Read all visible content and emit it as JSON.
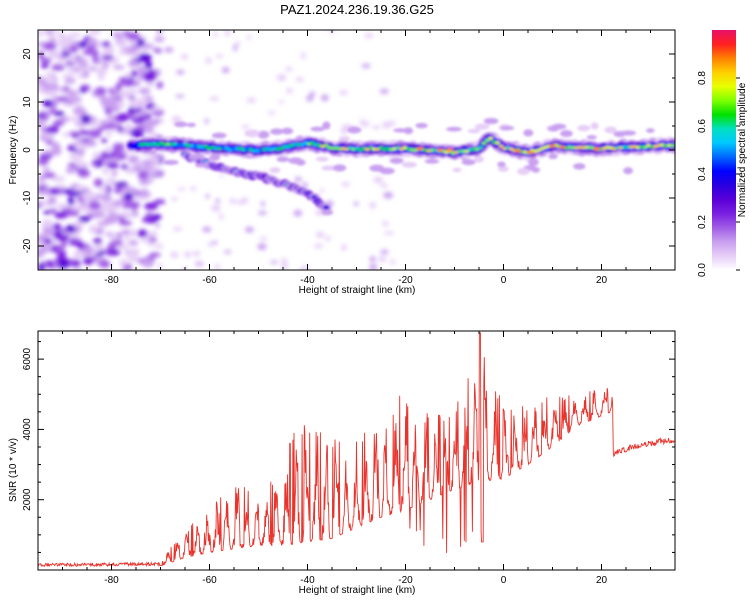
{
  "figure_title": "PAZ1.2024.236.19.36.G25",
  "chart_data": [
    {
      "type": "heatmap",
      "title": "",
      "xlabel": "Height of straight line (km)",
      "ylabel": "Frequency (Hz)",
      "xlim": [
        -95,
        35
      ],
      "ylim": [
        -25,
        25
      ],
      "xticks": [
        -80,
        -60,
        -40,
        -20,
        0,
        20
      ],
      "yticks": [
        -20,
        -10,
        0,
        10,
        20
      ],
      "colorbar": {
        "label": "Normalized spectral amplitude",
        "range": [
          0,
          1
        ],
        "ticks": [
          "0.0",
          "0.2",
          "0.4",
          "0.6",
          "0.8"
        ],
        "tick_values": [
          0,
          0.2,
          0.4,
          0.6,
          0.8
        ],
        "colors": [
          "#ffffff",
          "#e6cef7",
          "#c9a0f0",
          "#a05ce6",
          "#7a1fe0",
          "#5a00d8",
          "#2a00e0",
          "#0000ff",
          "#0066ff",
          "#00c8ff",
          "#00e0c0",
          "#00e000",
          "#7fff00",
          "#e8ff00",
          "#ffd000",
          "#ff8000",
          "#ff2020",
          "#e8106a"
        ]
      },
      "features": {
        "main_ridge": [
          [
            -75,
            1.0
          ],
          [
            -70,
            1.2
          ],
          [
            -65,
            1.0
          ],
          [
            -60,
            0.5
          ],
          [
            -55,
            0.2
          ],
          [
            -50,
            0.0
          ],
          [
            -45,
            0.5
          ],
          [
            -40,
            1.5
          ],
          [
            -35,
            0.5
          ],
          [
            -30,
            0.2
          ],
          [
            -25,
            0.3
          ],
          [
            -20,
            0.3
          ],
          [
            -15,
            0.0
          ],
          [
            -10,
            -0.5
          ],
          [
            -5,
            0.2
          ],
          [
            -3,
            2.5
          ],
          [
            0,
            0.5
          ],
          [
            5,
            -0.5
          ],
          [
            10,
            0.8
          ],
          [
            15,
            0.5
          ],
          [
            20,
            0.3
          ],
          [
            25,
            0.6
          ],
          [
            30,
            0.8
          ],
          [
            35,
            1.0
          ]
        ],
        "secondary_branch": [
          [
            -65,
            -1.0
          ],
          [
            -60,
            -3.0
          ],
          [
            -55,
            -4.5
          ],
          [
            -50,
            -5.5
          ],
          [
            -45,
            -7.0
          ],
          [
            -40,
            -9.0
          ],
          [
            -35,
            -13.0
          ]
        ],
        "noise_region_xmax": -72
      }
    },
    {
      "type": "line",
      "title": "",
      "xlabel": "Height of straight line (km)",
      "ylabel": "SNR (10 * v/v)",
      "xlim": [
        -95,
        35
      ],
      "ylim": [
        0,
        6800
      ],
      "xticks": [
        -80,
        -60,
        -40,
        -20,
        0,
        20
      ],
      "yticks": [
        2000,
        4000,
        6000
      ],
      "series": [
        {
          "color": "#e8332c",
          "envelope": [
            [
              -95,
              100
            ],
            [
              -70,
              150
            ],
            [
              -68,
              700
            ],
            [
              -60,
              1800
            ],
            [
              -55,
              2500
            ],
            [
              -50,
              2300
            ],
            [
              -45,
              3000
            ],
            [
              -42,
              4400
            ],
            [
              -35,
              3700
            ],
            [
              -25,
              4200
            ],
            [
              -20,
              5200
            ],
            [
              -15,
              4400
            ],
            [
              -10,
              4500
            ],
            [
              -5,
              6800
            ],
            [
              0,
              4700
            ],
            [
              5,
              4700
            ],
            [
              10,
              5000
            ],
            [
              15,
              5100
            ],
            [
              22,
              5200
            ]
          ],
          "baseline": [
            [
              -95,
              100
            ],
            [
              -70,
              120
            ],
            [
              -66,
              300
            ],
            [
              -60,
              500
            ],
            [
              -55,
              600
            ],
            [
              -50,
              700
            ],
            [
              -45,
              700
            ],
            [
              -40,
              800
            ],
            [
              -35,
              900
            ],
            [
              -30,
              1200
            ],
            [
              -25,
              1500
            ],
            [
              -20,
              1700
            ],
            [
              -15,
              2000
            ],
            [
              -10,
              2300
            ],
            [
              -5,
              2500
            ],
            [
              0,
              2600
            ],
            [
              5,
              3000
            ],
            [
              10,
              3500
            ],
            [
              15,
              4100
            ],
            [
              22,
              4500
            ]
          ],
          "trough_extra": [
            [
              -40,
              0
            ],
            [
              -20,
              0
            ],
            [
              -4.5,
              2300
            ]
          ],
          "tail": [
            [
              22.5,
              3300
            ],
            [
              25,
              3450
            ],
            [
              30,
              3600
            ],
            [
              35,
              3720
            ]
          ]
        }
      ]
    }
  ]
}
